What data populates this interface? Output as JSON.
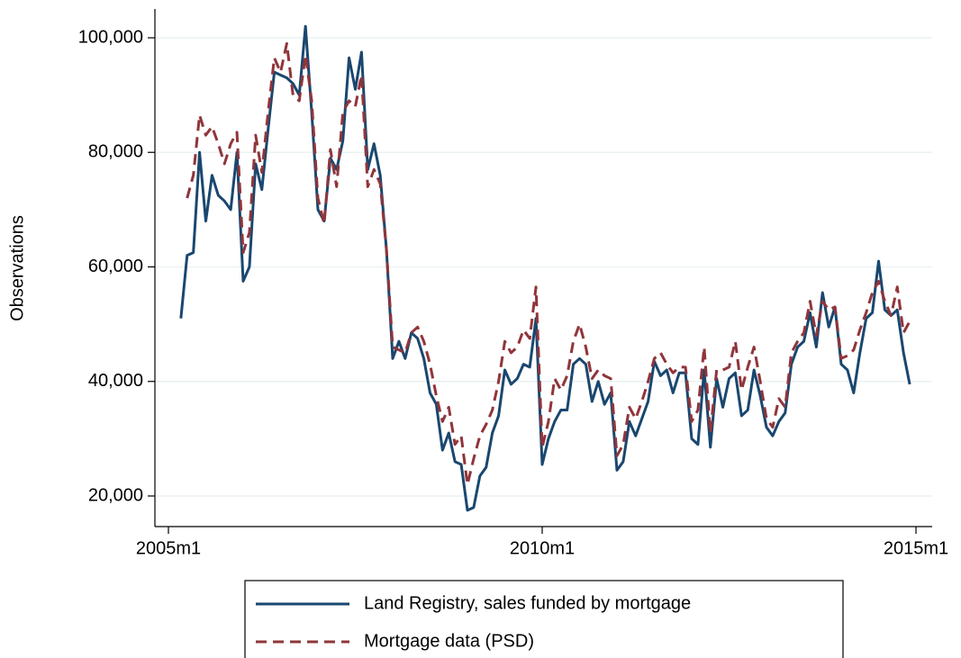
{
  "chart_data": {
    "type": "line",
    "y_label": "Observations",
    "x": [
      "2005m3",
      "2005m4",
      "2005m5",
      "2005m6",
      "2005m7",
      "2005m8",
      "2005m9",
      "2005m10",
      "2005m11",
      "2005m12",
      "2006m1",
      "2006m2",
      "2006m3",
      "2006m4",
      "2006m5",
      "2006m6",
      "2006m7",
      "2006m8",
      "2006m9",
      "2006m10",
      "2006m11",
      "2006m12",
      "2007m1",
      "2007m2",
      "2007m3",
      "2007m4",
      "2007m5",
      "2007m6",
      "2007m7",
      "2007m8",
      "2007m9",
      "2007m10",
      "2007m11",
      "2007m12",
      "2008m1",
      "2008m2",
      "2008m3",
      "2008m4",
      "2008m5",
      "2008m6",
      "2008m7",
      "2008m8",
      "2008m9",
      "2008m10",
      "2008m11",
      "2008m12",
      "2009m1",
      "2009m2",
      "2009m3",
      "2009m4",
      "2009m5",
      "2009m6",
      "2009m7",
      "2009m8",
      "2009m9",
      "2009m10",
      "2009m11",
      "2009m12",
      "2010m1",
      "2010m2",
      "2010m3",
      "2010m4",
      "2010m5",
      "2010m6",
      "2010m7",
      "2010m8",
      "2010m9",
      "2010m10",
      "2010m11",
      "2010m12",
      "2011m1",
      "2011m2",
      "2011m3",
      "2011m4",
      "2011m5",
      "2011m6",
      "2011m7",
      "2011m8",
      "2011m9",
      "2011m10",
      "2011m11",
      "2011m12",
      "2012m1",
      "2012m2",
      "2012m3",
      "2012m4",
      "2012m5",
      "2012m6",
      "2012m7",
      "2012m8",
      "2012m9",
      "2012m10",
      "2012m11",
      "2012m12",
      "2013m1",
      "2013m2",
      "2013m3",
      "2013m4",
      "2013m5",
      "2013m6",
      "2013m7",
      "2013m8",
      "2013m9",
      "2013m10",
      "2013m11",
      "2013m12",
      "2014m1",
      "2014m2",
      "2014m3",
      "2014m4",
      "2014m5",
      "2014m6",
      "2014m7",
      "2014m8",
      "2014m9",
      "2014m10",
      "2014m11",
      "2014m12"
    ],
    "series": [
      {
        "name": "Land Registry, sales funded by mortgage",
        "color": "#1a476f",
        "dash": false,
        "values": [
          51000,
          62000,
          62500,
          80000,
          68000,
          76000,
          72500,
          71500,
          70000,
          80000,
          57500,
          60000,
          78000,
          73500,
          84000,
          94000,
          93500,
          93000,
          92000,
          90000,
          102000,
          87000,
          70000,
          68000,
          79000,
          77000,
          82000,
          96500,
          91000,
          97500,
          77000,
          81500,
          76000,
          63000,
          44000,
          47000,
          44000,
          48500,
          47500,
          44000,
          38000,
          36000,
          28000,
          31000,
          26000,
          25500,
          17500,
          18000,
          23500,
          25000,
          31000,
          34000,
          42000,
          39500,
          40500,
          43000,
          42500,
          51000,
          25500,
          30000,
          33000,
          35000,
          35000,
          43000,
          44000,
          43000,
          36500,
          40000,
          36000,
          38000,
          24500,
          26000,
          33000,
          30500,
          33500,
          36500,
          43500,
          41000,
          42000,
          38000,
          41500,
          41500,
          30000,
          29000,
          42000,
          28500,
          40500,
          35500,
          40500,
          41500,
          34000,
          35000,
          42000,
          37500,
          32000,
          30500,
          33000,
          34500,
          43000,
          46000,
          47000,
          52000,
          46000,
          55500,
          49500,
          53000,
          43000,
          42000,
          38000,
          45000,
          51000,
          52000,
          61000,
          52500,
          51500,
          52500,
          45000,
          39500
        ]
      },
      {
        "name": "Mortgage data (PSD)",
        "color": "#90353b",
        "dash": true,
        "values": [
          null,
          72000,
          76000,
          86500,
          83000,
          84500,
          81500,
          78000,
          81500,
          83500,
          62500,
          66000,
          83000,
          76500,
          87000,
          96500,
          94000,
          99000,
          90000,
          89000,
          97000,
          89000,
          72000,
          67500,
          80500,
          74000,
          87000,
          89000,
          88000,
          93500,
          74000,
          77000,
          74500,
          63000,
          46000,
          45500,
          45000,
          48500,
          49500,
          47000,
          43000,
          37500,
          33000,
          35500,
          29000,
          30500,
          22000,
          26500,
          30500,
          32500,
          35000,
          40000,
          47000,
          45000,
          46000,
          49000,
          47500,
          56500,
          28500,
          33000,
          40500,
          38500,
          41000,
          47000,
          50000,
          46000,
          40500,
          42000,
          41000,
          40500,
          27000,
          29000,
          35500,
          33500,
          36500,
          40000,
          44000,
          45000,
          43000,
          41500,
          42500,
          42500,
          33000,
          35000,
          46000,
          31000,
          42000,
          42000,
          42500,
          47000,
          38500,
          42500,
          46000,
          40000,
          33500,
          32000,
          37000,
          35500,
          45000,
          47000,
          48500,
          54000,
          48000,
          54000,
          52500,
          53000,
          44000,
          44500,
          45500,
          49000,
          52000,
          55500,
          57500,
          54000,
          51500,
          56500,
          48500,
          50500
        ]
      }
    ],
    "xlim": [
      "2005m1",
      "2015m1"
    ],
    "xticks": [
      "2005m1",
      "2010m1",
      "2015m1"
    ],
    "ylim": [
      20000,
      100000
    ],
    "yticks": [
      {
        "value": 20000,
        "label": "20,000"
      },
      {
        "value": 40000,
        "label": "40,000"
      },
      {
        "value": 60000,
        "label": "60,000"
      },
      {
        "value": 80000,
        "label": "80,000"
      },
      {
        "value": 100000,
        "label": "100,000"
      }
    ],
    "grid": true,
    "legend": "bottom"
  }
}
